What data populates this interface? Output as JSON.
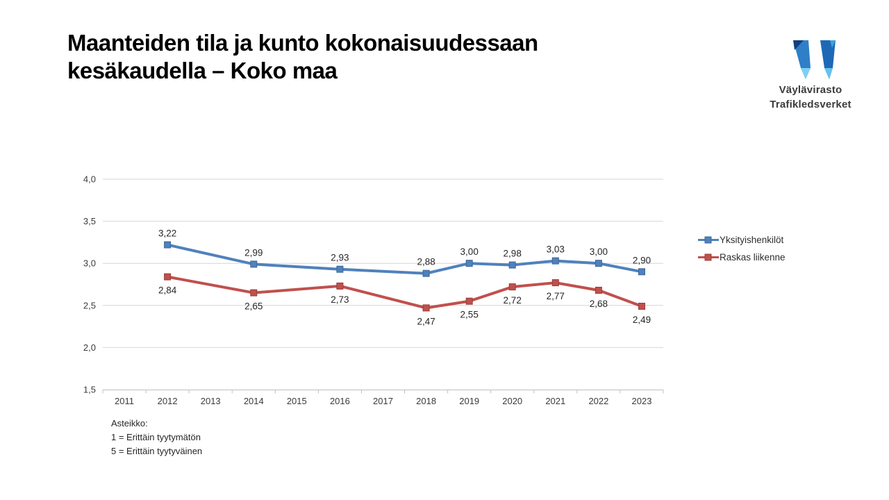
{
  "slide": {
    "title": "Maanteiden tila ja kunto kokonaisuudessaan\nkesäkaudella – Koko maa"
  },
  "logo": {
    "text": "Väylävirasto\nTrafikledsverket",
    "colors": {
      "dark_navy": "#123f7e",
      "mid_blue_left": "#2f7fc8",
      "mid_blue_right": "#1d69b8",
      "bright_blue": "#3fa3dc",
      "light_tip_left": "#7fd0f0",
      "light_tip_right": "#64c3ec",
      "text_color": "#3c3c3b"
    }
  },
  "footnote": {
    "text": "Asteikko:\n1 = Erittäin tyytymätön\n5 = Erittäin tyytyväinen"
  },
  "chart_data": {
    "type": "line",
    "title": "",
    "xlabel": "",
    "ylabel": "",
    "categories": [
      "2011",
      "2012",
      "2013",
      "2014",
      "2015",
      "2016",
      "2017",
      "2018",
      "2019",
      "2020",
      "2021",
      "2022",
      "2023"
    ],
    "series": [
      {
        "name": "Yksityishenkilöt",
        "color": "#4f81bd",
        "marker_border": "#3c6899",
        "label_position": "above",
        "values": [
          null,
          3.22,
          null,
          2.99,
          null,
          2.93,
          null,
          2.88,
          3.0,
          2.98,
          3.03,
          3.0,
          2.9
        ]
      },
      {
        "name": "Raskas liikenne",
        "color": "#c0504d",
        "marker_border": "#9a3d3a",
        "label_position": "below",
        "values": [
          null,
          2.84,
          null,
          2.65,
          null,
          2.73,
          null,
          2.47,
          2.55,
          2.72,
          2.77,
          2.68,
          2.49
        ]
      }
    ],
    "ylim": [
      1.5,
      4.0
    ],
    "yticks": [
      4.0,
      3.5,
      3.0,
      2.5,
      2.0,
      1.5
    ],
    "decimal_separator": ",",
    "grid": true,
    "grid_color": "#d6d6d6",
    "axis_color": "#bfbfbf",
    "tick_label_color": "#3a3a3a",
    "data_label_color": "#262626",
    "legend_position": "right"
  }
}
